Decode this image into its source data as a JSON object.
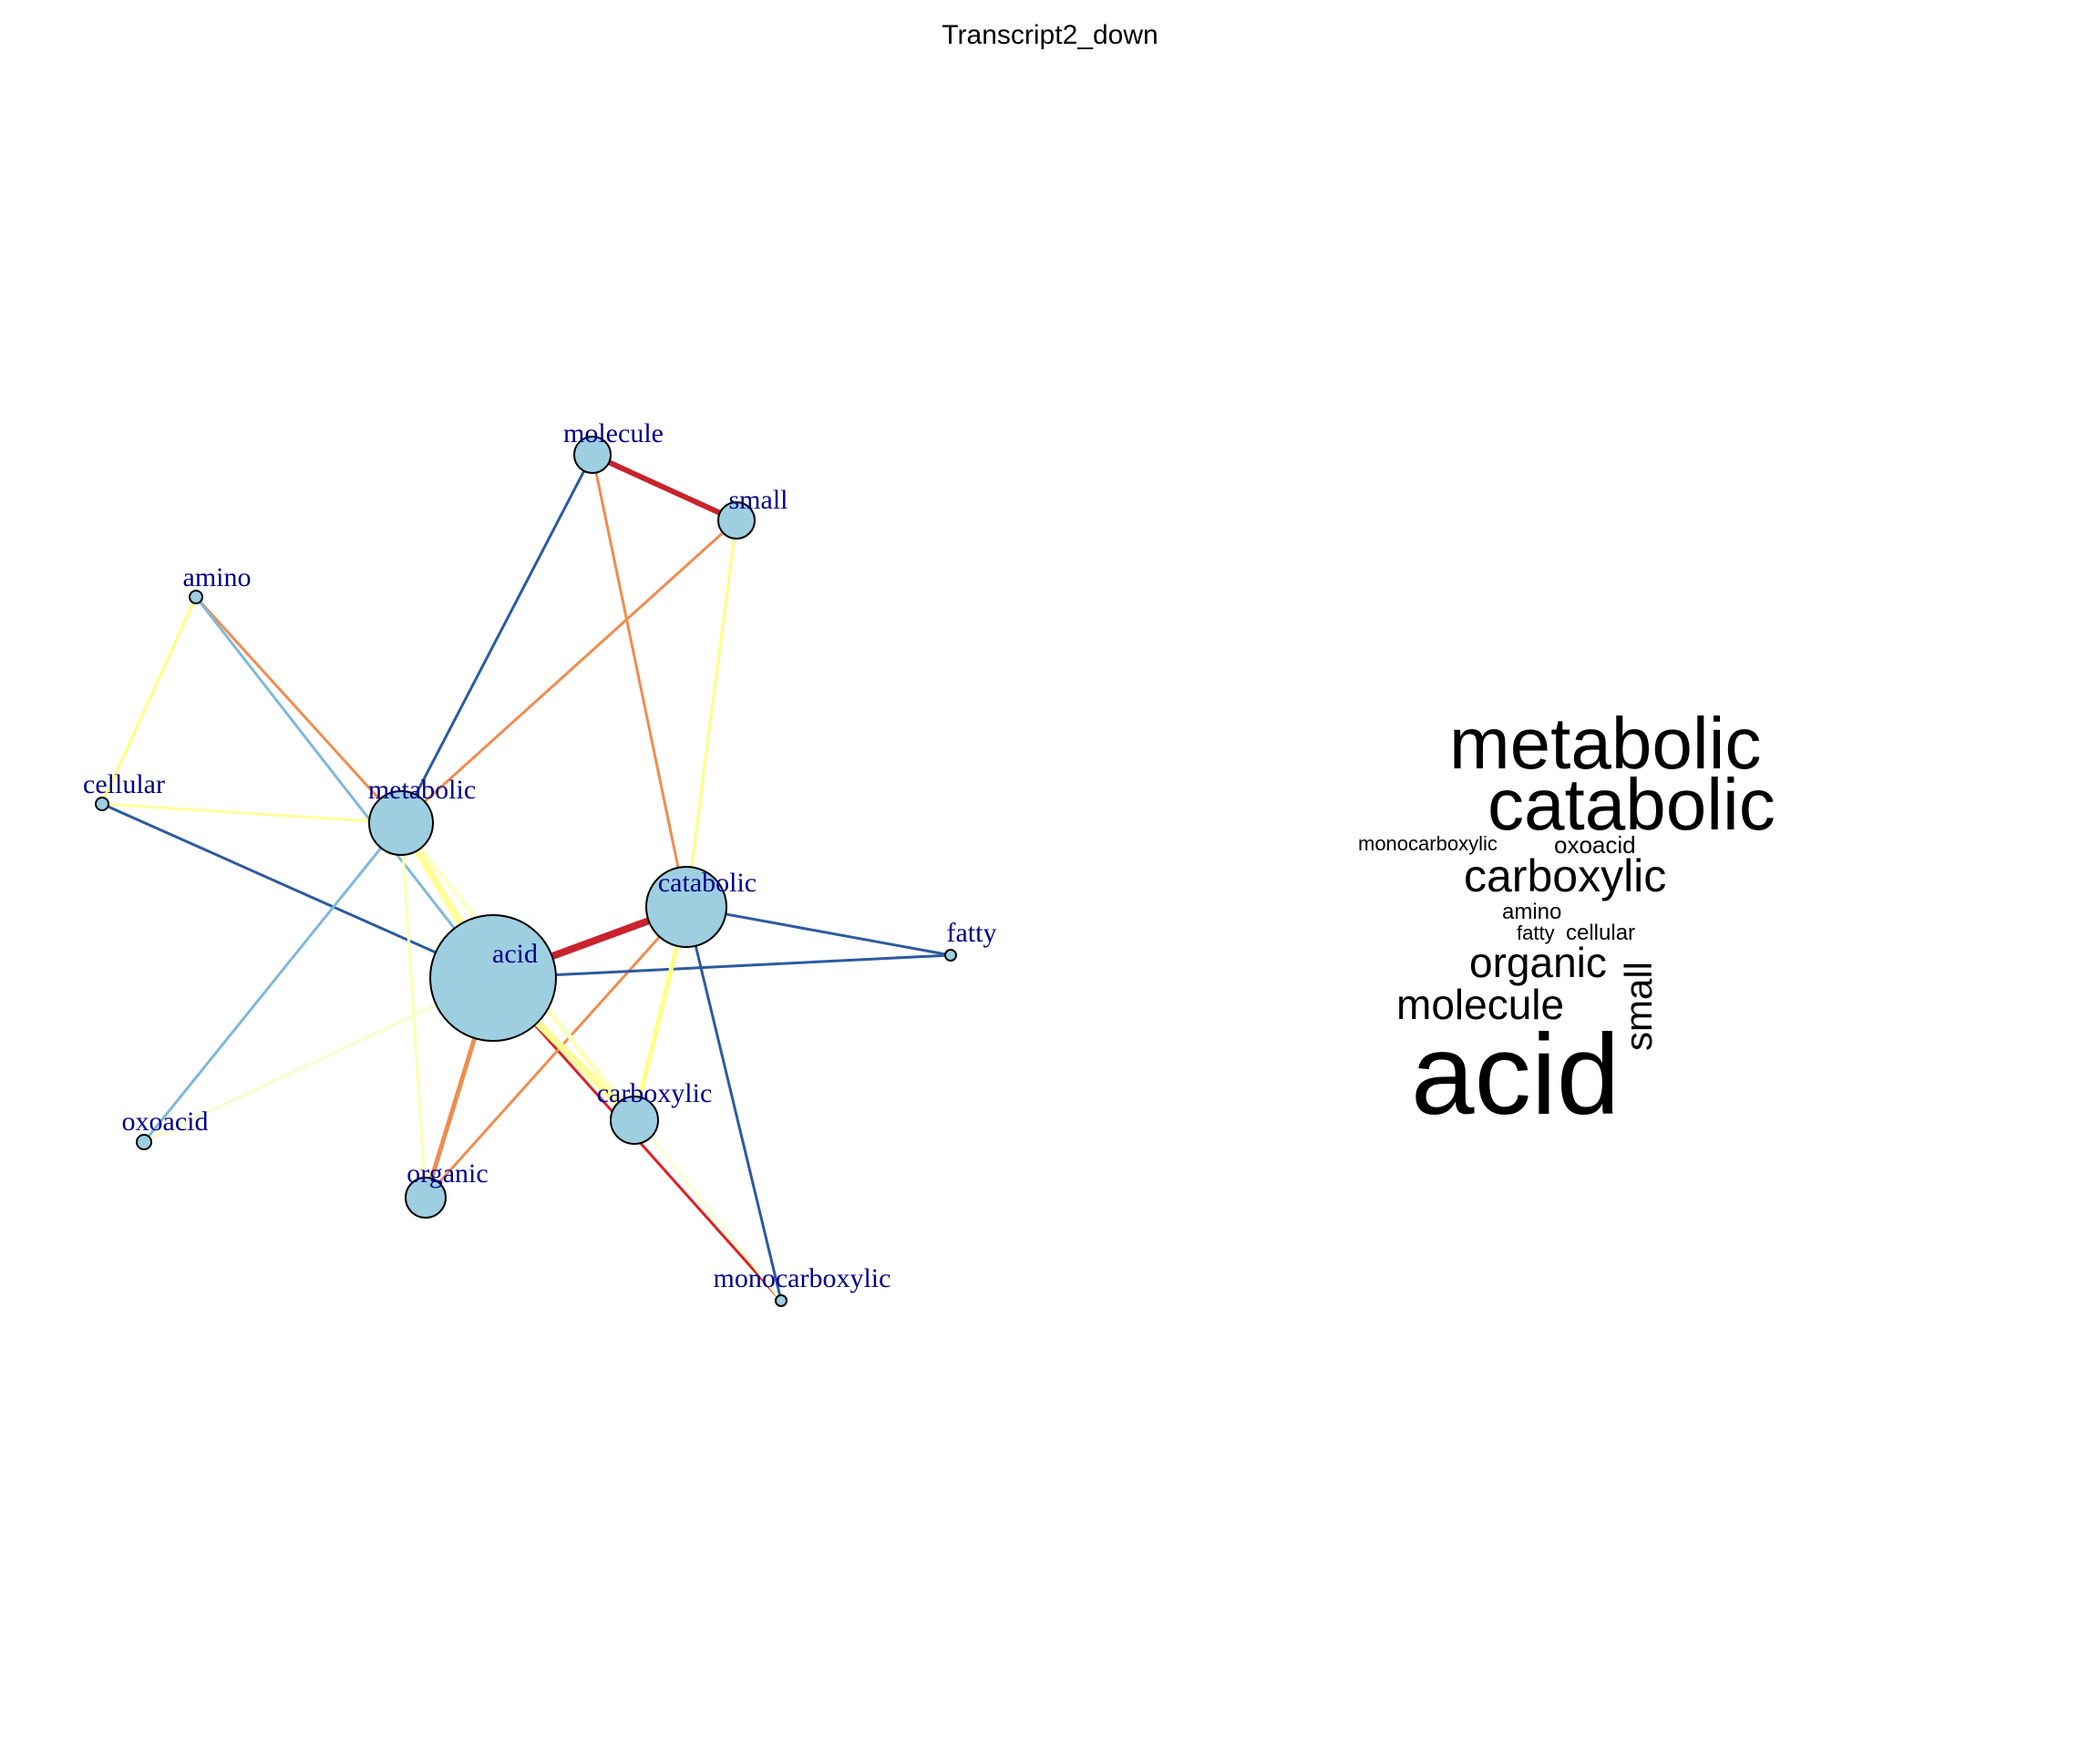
{
  "title": "Transcript2_down",
  "network": {
    "node_fill": "#9ECFE0",
    "label_color": "#00008B",
    "nodes": [
      {
        "id": "acid",
        "label": "acid"
      },
      {
        "id": "metabolic",
        "label": "metabolic"
      },
      {
        "id": "catabolic",
        "label": "catabolic"
      },
      {
        "id": "carboxylic",
        "label": "carboxylic"
      },
      {
        "id": "organic",
        "label": "organic"
      },
      {
        "id": "molecule",
        "label": "molecule"
      },
      {
        "id": "small",
        "label": "small"
      },
      {
        "id": "amino",
        "label": "amino"
      },
      {
        "id": "cellular",
        "label": "cellular"
      },
      {
        "id": "oxoacid",
        "label": "oxoacid"
      },
      {
        "id": "fatty",
        "label": "fatty"
      },
      {
        "id": "monocarboxylic",
        "label": "monocarboxylic"
      }
    ],
    "edges": [
      {
        "source": "acid",
        "target": "catabolic",
        "color": "#C8232C",
        "weight": 4
      },
      {
        "source": "molecule",
        "target": "small",
        "color": "#C8232C",
        "weight": 3
      },
      {
        "source": "acid",
        "target": "organic",
        "color": "#F08C4F",
        "weight": 2.5
      },
      {
        "source": "acid",
        "target": "monocarboxylic",
        "color": "#E0201F",
        "weight": 1.5
      },
      {
        "source": "metabolic",
        "target": "amino",
        "color": "#F08C4F",
        "weight": 1.5
      },
      {
        "source": "metabolic",
        "target": "small",
        "color": "#F08C4F",
        "weight": 1.5
      },
      {
        "source": "molecule",
        "target": "catabolic",
        "color": "#F08C4F",
        "weight": 1.5
      },
      {
        "source": "catabolic",
        "target": "organic",
        "color": "#F08C4F",
        "weight": 1.5
      },
      {
        "source": "metabolic",
        "target": "molecule",
        "color": "#2C5AA0",
        "weight": 1.5
      },
      {
        "source": "metabolic",
        "target": "cellular",
        "color": "#FFFF99",
        "weight": 1.5
      },
      {
        "source": "cellular",
        "target": "acid",
        "color": "#2C5AA0",
        "weight": 1.5
      },
      {
        "source": "acid",
        "target": "fatty",
        "color": "#2C5AA0",
        "weight": 1.5
      },
      {
        "source": "catabolic",
        "target": "fatty",
        "color": "#2C5AA0",
        "weight": 1.5
      },
      {
        "source": "catabolic",
        "target": "monocarboxylic",
        "color": "#2C5AA0",
        "weight": 1.5
      },
      {
        "source": "amino",
        "target": "acid",
        "color": "#7FB8DA",
        "weight": 1.5
      },
      {
        "source": "metabolic",
        "target": "oxoacid",
        "color": "#7FB8DA",
        "weight": 1.5
      },
      {
        "source": "amino",
        "target": "cellular",
        "color": "#FFFF80",
        "weight": 1.5
      },
      {
        "source": "small",
        "target": "catabolic",
        "color": "#FFFF80",
        "weight": 1.5
      },
      {
        "source": "catabolic",
        "target": "carboxylic",
        "color": "#FFFF80",
        "weight": 2.5
      },
      {
        "source": "metabolic",
        "target": "acid",
        "color": "#FFFF99",
        "weight": 4
      },
      {
        "source": "metabolic",
        "target": "carboxylic",
        "color": "#FFFFB0",
        "weight": 2
      },
      {
        "source": "metabolic",
        "target": "organic",
        "color": "#FFFFB0",
        "weight": 1.5
      },
      {
        "source": "acid",
        "target": "carboxylic",
        "color": "#FFFF99",
        "weight": 4
      },
      {
        "source": "acid",
        "target": "oxoacid",
        "color": "#F5FFC8",
        "weight": 1.5
      },
      {
        "source": "metabolic",
        "target": "monocarboxylic",
        "color": "#FFFFCC",
        "weight": 1.5
      }
    ]
  },
  "wordcloud": [
    {
      "text": "metabolic",
      "rotated": false
    },
    {
      "text": "catabolic",
      "rotated": false
    },
    {
      "text": "monocarboxylic",
      "rotated": false
    },
    {
      "text": "oxoacid",
      "rotated": false
    },
    {
      "text": "carboxylic",
      "rotated": false
    },
    {
      "text": "amino",
      "rotated": false
    },
    {
      "text": "fatty",
      "rotated": false
    },
    {
      "text": "cellular",
      "rotated": false
    },
    {
      "text": "organic",
      "rotated": false
    },
    {
      "text": "molecule",
      "rotated": false
    },
    {
      "text": "small",
      "rotated": true
    },
    {
      "text": "acid",
      "rotated": false
    }
  ]
}
